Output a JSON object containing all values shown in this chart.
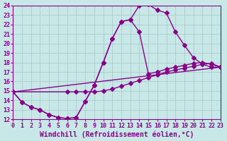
{
  "xlabel": "Windchill (Refroidissement éolien,°C)",
  "background_color": "#c8e8e8",
  "line_color": "#880088",
  "grid_color": "#aacccc",
  "xlim": [
    0,
    23
  ],
  "ylim": [
    12,
    24
  ],
  "xticks": [
    0,
    1,
    2,
    3,
    4,
    5,
    6,
    7,
    8,
    9,
    10,
    11,
    12,
    13,
    14,
    15,
    16,
    17,
    18,
    19,
    20,
    21,
    22,
    23
  ],
  "yticks": [
    12,
    13,
    14,
    15,
    16,
    17,
    18,
    19,
    20,
    21,
    22,
    23,
    24
  ],
  "curve1_x": [
    0,
    1,
    2,
    3,
    4,
    5,
    6,
    7,
    8,
    9,
    10,
    11,
    12,
    13,
    14,
    15,
    16,
    17,
    18,
    19,
    20,
    21,
    22,
    23
  ],
  "curve1_y": [
    14.9,
    13.8,
    13.3,
    13.0,
    12.5,
    12.2,
    12.1,
    12.2,
    13.9,
    15.6,
    18.0,
    20.5,
    22.3,
    22.5,
    24.0,
    24.1,
    23.5,
    23.2,
    21.2,
    19.8,
    18.5,
    17.8,
    17.5,
    17.5
  ],
  "curve2_x": [
    0,
    1,
    2,
    3,
    4,
    5,
    6,
    7,
    8,
    9,
    10,
    11,
    12,
    13,
    14,
    15,
    16,
    17,
    18,
    19,
    20,
    21,
    22,
    23
  ],
  "curve2_y": [
    14.9,
    13.8,
    13.3,
    13.0,
    12.5,
    12.2,
    12.1,
    12.2,
    13.9,
    15.6,
    18.0,
    20.5,
    22.3,
    22.5,
    21.2,
    16.8,
    17.0,
    17.3,
    17.5,
    17.7,
    17.9,
    18.0,
    17.8,
    17.5
  ],
  "curve3_x": [
    0,
    23
  ],
  "curve3_y": [
    14.9,
    17.5
  ],
  "curve4_x": [
    0,
    6,
    7,
    8,
    9,
    10,
    11,
    12,
    13,
    14,
    15,
    16,
    17,
    18,
    19,
    20,
    21,
    22,
    23
  ],
  "curve4_y": [
    14.9,
    14.9,
    14.9,
    14.9,
    14.9,
    15.0,
    15.2,
    15.5,
    15.8,
    16.1,
    16.4,
    16.7,
    17.0,
    17.2,
    17.4,
    17.6,
    17.8,
    17.9,
    17.5
  ],
  "marker": "D",
  "markersize": 3,
  "linewidth": 1.0,
  "tick_fontsize": 6,
  "xlabel_fontsize": 7
}
